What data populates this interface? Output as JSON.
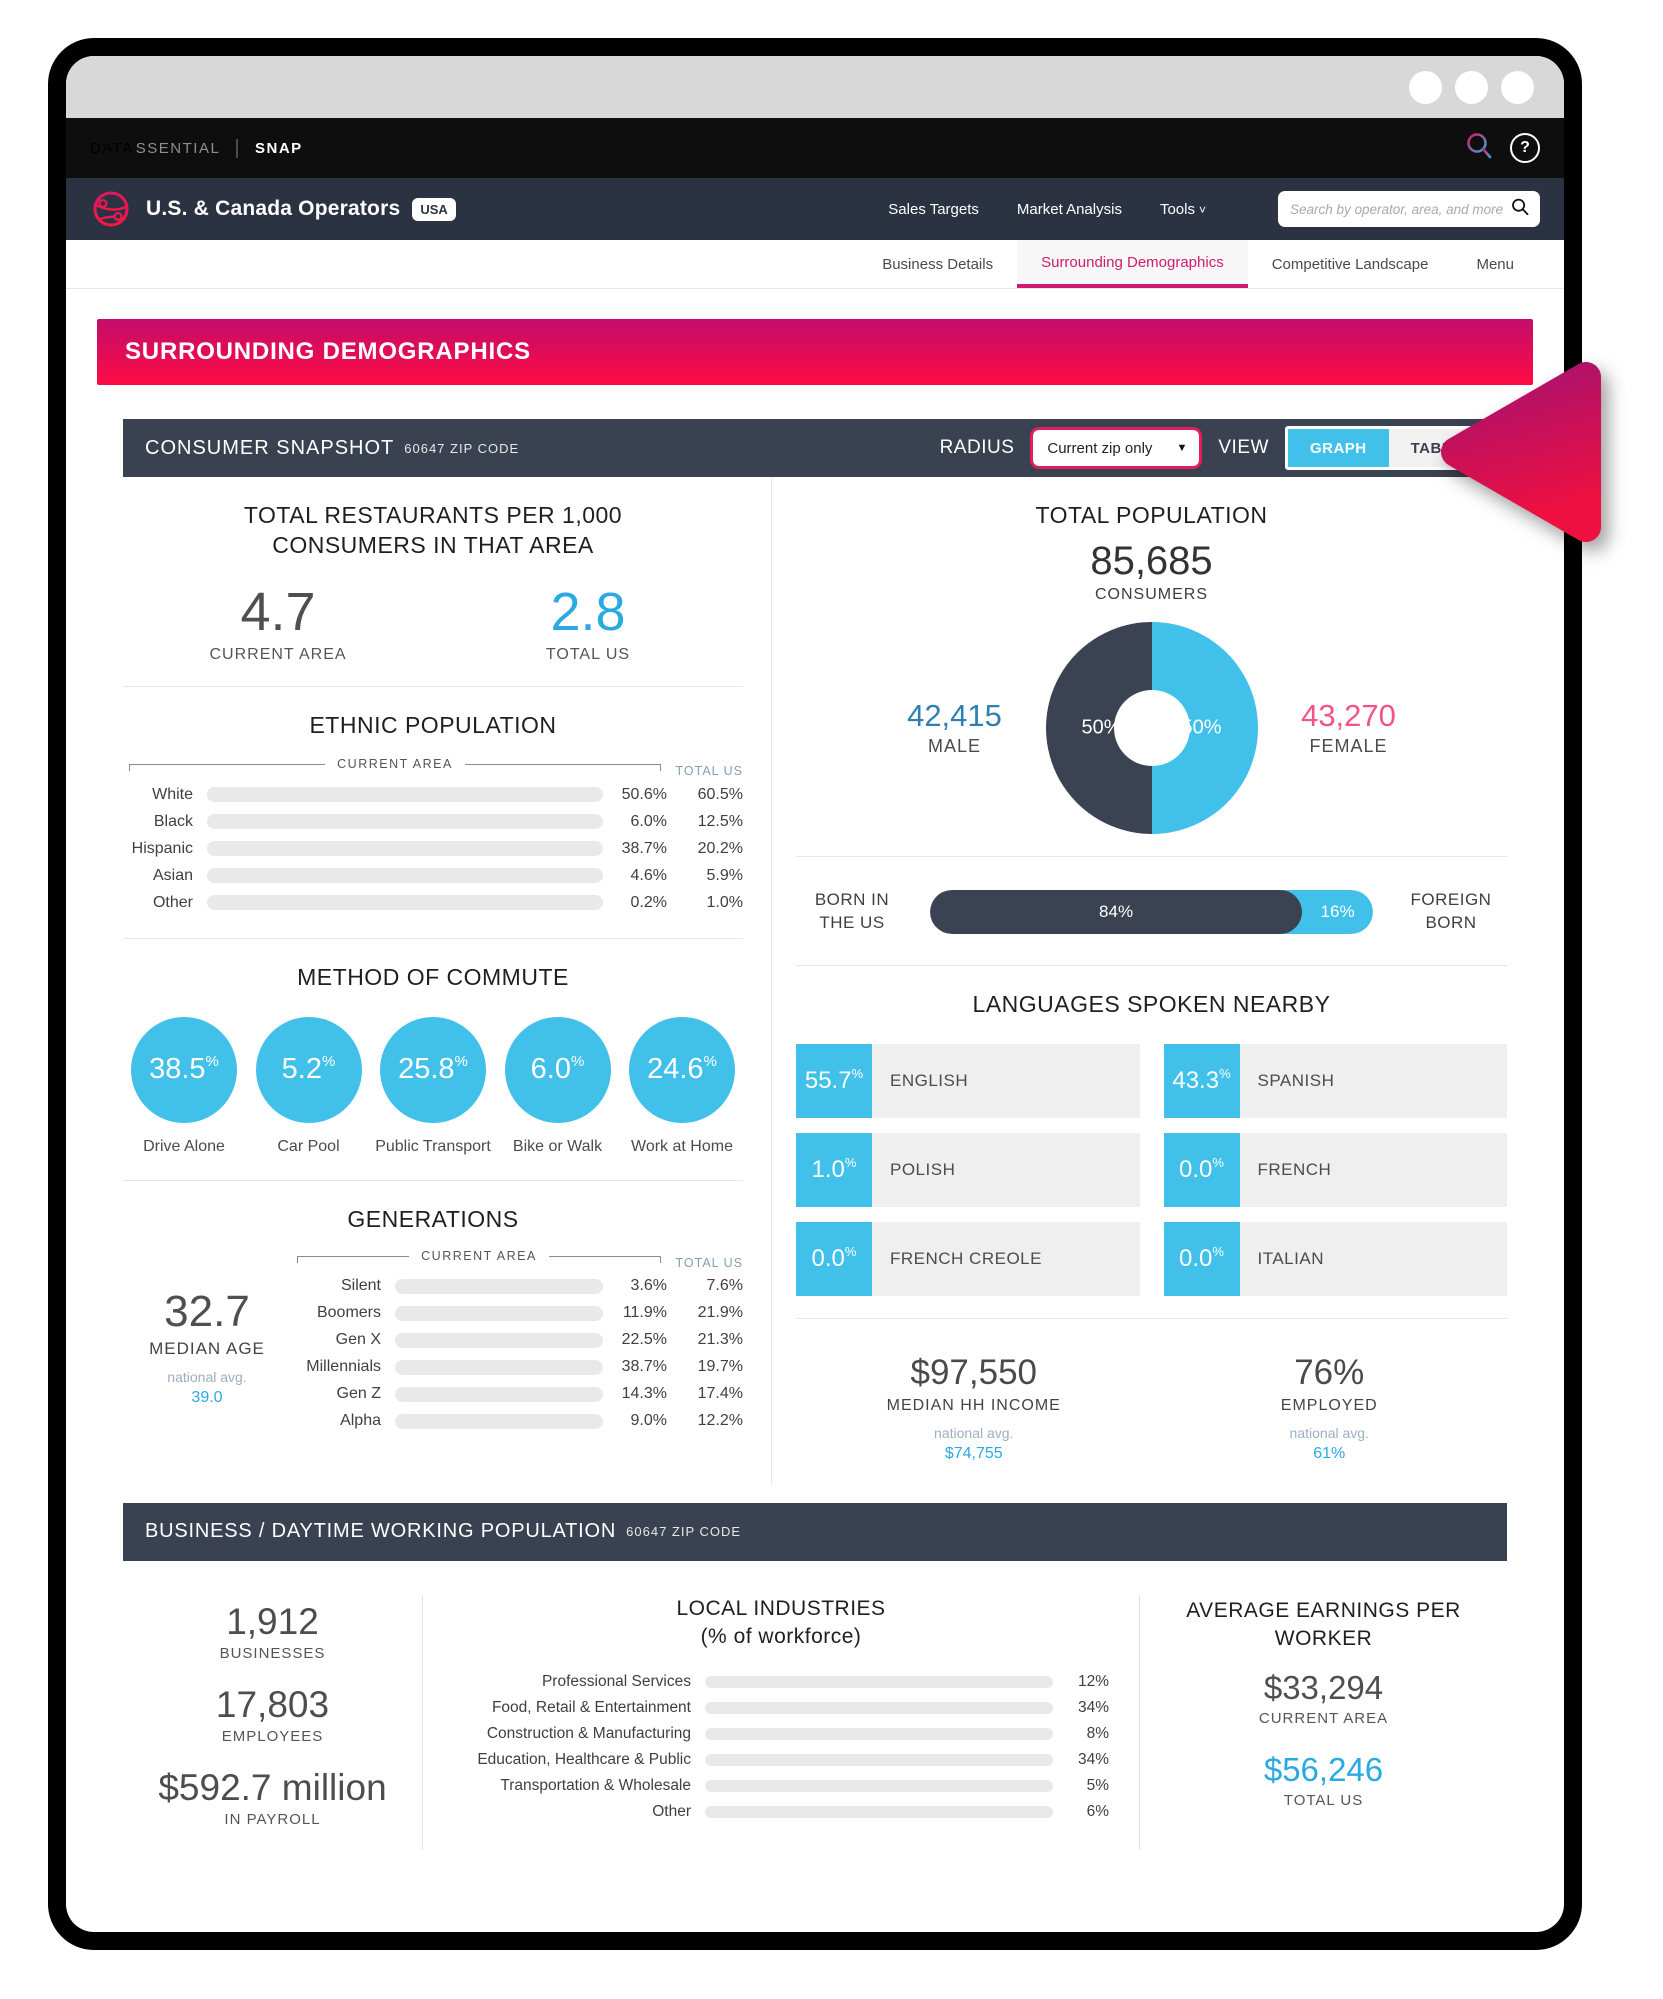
{
  "meta": {
    "percent_sign": "%"
  },
  "icons": {
    "help": "?",
    "dropdown_caret": "▼",
    "tools_caret": "˅"
  },
  "topbar": {
    "brand_bold": "DATA",
    "brand_light": "SSENTIAL",
    "divider": "|",
    "product": "SNAP"
  },
  "appbar": {
    "title": "U.S. & Canada Operators",
    "badge": "USA",
    "nav": [
      "Sales Targets",
      "Market Analysis",
      "Tools"
    ],
    "search_placeholder": "Search by operator, area, and more"
  },
  "tabs": [
    {
      "label": "Business Details"
    },
    {
      "label": "Surrounding Demographics"
    },
    {
      "label": "Competitive Landscape"
    },
    {
      "label": "Menu"
    }
  ],
  "banner": {
    "title": "SURROUNDING DEMOGRAPHICS"
  },
  "snapshot": {
    "title": "CONSUMER SNAPSHOT",
    "subtitle": "60647 ZIP CODE",
    "radius_label": "RADIUS",
    "radius_value": "Current zip only",
    "view_label": "VIEW",
    "view_graph": "GRAPH",
    "view_table": "TABLE"
  },
  "restaurants": {
    "title": "TOTAL RESTAURANTS PER 1,000 CONSUMERS IN THAT AREA",
    "current_value": "4.7",
    "current_label": "CURRENT AREA",
    "us_value": "2.8",
    "us_label": "TOTAL US"
  },
  "ethnic": {
    "title": "ETHNIC POPULATION",
    "bracket_label": "CURRENT AREA",
    "total_label": "TOTAL US",
    "rows": [
      {
        "label": "White",
        "current": "50.6%",
        "current_pct": 50.6,
        "total": "60.5%"
      },
      {
        "label": "Black",
        "current": "6.0%",
        "current_pct": 6.0,
        "total": "12.5%"
      },
      {
        "label": "Hispanic",
        "current": "38.7%",
        "current_pct": 38.7,
        "total": "20.2%"
      },
      {
        "label": "Asian",
        "current": "4.6%",
        "current_pct": 4.6,
        "total": "5.9%"
      },
      {
        "label": "Other",
        "current": "0.2%",
        "current_pct": 0.2,
        "total": "1.0%"
      }
    ]
  },
  "commute": {
    "title": "METHOD OF COMMUTE",
    "items": [
      {
        "value": "38.5",
        "label": "Drive Alone"
      },
      {
        "value": "5.2",
        "label": "Car Pool"
      },
      {
        "value": "25.8",
        "label": "Public Transport"
      },
      {
        "value": "6.0",
        "label": "Bike or Walk"
      },
      {
        "value": "24.6",
        "label": "Work at Home"
      }
    ]
  },
  "generations": {
    "title": "GENERATIONS",
    "median_age": "32.7",
    "median_label": "MEDIAN AGE",
    "natl_label": "national avg.",
    "natl_value": "39.0",
    "bracket_label": "CURRENT AREA",
    "total_label": "TOTAL US",
    "rows": [
      {
        "label": "Silent",
        "current": "3.6%",
        "current_pct": 3.6,
        "total": "7.6%"
      },
      {
        "label": "Boomers",
        "current": "11.9%",
        "current_pct": 11.9,
        "total": "21.9%"
      },
      {
        "label": "Gen X",
        "current": "22.5%",
        "current_pct": 22.5,
        "total": "21.3%"
      },
      {
        "label": "Millennials",
        "current": "38.7%",
        "current_pct": 38.7,
        "total": "19.7%"
      },
      {
        "label": "Gen Z",
        "current": "14.3%",
        "current_pct": 14.3,
        "total": "17.4%"
      },
      {
        "label": "Alpha",
        "current": "9.0%",
        "current_pct": 9.0,
        "total": "12.2%"
      }
    ]
  },
  "population": {
    "title": "TOTAL POPULATION",
    "total": "85,685",
    "total_label": "CONSUMERS",
    "male_value": "42,415",
    "male_label": "MALE",
    "male_pct": "50%",
    "female_value": "43,270",
    "female_label": "FEMALE",
    "female_pct": "50%"
  },
  "born": {
    "left_label": "BORN IN THE US",
    "right_label": "FOREIGN BORN",
    "us_pct": "84%",
    "us_num": 84,
    "foreign_pct": "16%",
    "foreign_num": 16
  },
  "languages": {
    "title": "LANGUAGES SPOKEN NEARBY",
    "items": [
      {
        "value": "55.7",
        "label": "ENGLISH"
      },
      {
        "value": "43.3",
        "label": "SPANISH"
      },
      {
        "value": "1.0",
        "label": "POLISH"
      },
      {
        "value": "0.0",
        "label": "FRENCH"
      },
      {
        "value": "0.0",
        "label": "FRENCH CREOLE"
      },
      {
        "value": "0.0",
        "label": "ITALIAN"
      }
    ]
  },
  "income": {
    "value": "$97,550",
    "label": "MEDIAN HH INCOME",
    "natl_label": "national avg.",
    "natl_value": "$74,755"
  },
  "employed": {
    "value": "76%",
    "label": "EMPLOYED",
    "natl_label": "national avg.",
    "natl_value": "61%"
  },
  "business": {
    "title": "BUSINESS / DAYTIME WORKING POPULATION",
    "subtitle": "60647 ZIP CODE",
    "stats": [
      {
        "value": "1,912",
        "label": "BUSINESSES"
      },
      {
        "value": "17,803",
        "label": "EMPLOYEES"
      },
      {
        "value": "$592.7 million",
        "label": "IN PAYROLL"
      }
    ],
    "industries": {
      "title": "LOCAL INDUSTRIES",
      "subtitle": "(% of workforce)",
      "rows": [
        {
          "label": "Professional Services",
          "value": "12%",
          "pct": 12
        },
        {
          "label": "Food, Retail & Entertainment",
          "value": "34%",
          "pct": 34
        },
        {
          "label": "Construction & Manufacturing",
          "value": "8%",
          "pct": 8
        },
        {
          "label": "Education, Healthcare & Public",
          "value": "34%",
          "pct": 34
        },
        {
          "label": "Transportation & Wholesale",
          "value": "5%",
          "pct": 5
        },
        {
          "label": "Other",
          "value": "6%",
          "pct": 6
        }
      ]
    },
    "earnings": {
      "title": "AVERAGE EARNINGS PER WORKER",
      "current_value": "$33,294",
      "current_label": "CURRENT AREA",
      "us_value": "$56,246",
      "us_label": "TOTAL US"
    }
  },
  "colors": {
    "accent_blue": "#41c1e9",
    "blue_text": "#2aa9e2",
    "male_blue": "#2f7fb2",
    "female_pink": "#f2548a",
    "brand_pink": "#e11d5e",
    "navy": "#3a4150",
    "banner_top": "#c30d6b",
    "banner_bottom": "#ff0b44",
    "tab_active": "#ce1a6f"
  }
}
